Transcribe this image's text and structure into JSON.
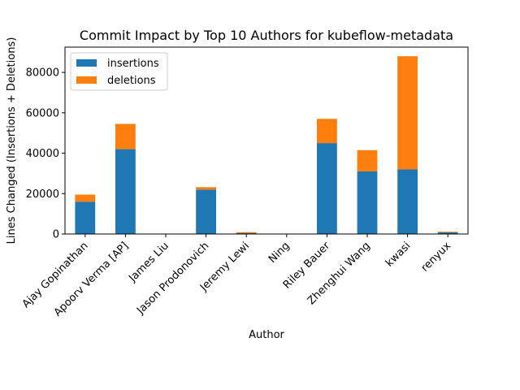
{
  "chart_data": {
    "type": "bar",
    "stacked": true,
    "title": "Commit Impact by Top 10 Authors for kubeflow-metadata",
    "xlabel": "Author",
    "ylabel": "Lines Changed (Insertions + Deletions)",
    "categories": [
      "Ajay Gopinathan",
      "Apoorv Verma [AP]",
      "James Liu",
      "Jason Prodonovich",
      "Jeremy Lewi",
      "Ning",
      "Riley Bauer",
      "Zhenghui Wang",
      "kwasi",
      "renyux"
    ],
    "series": [
      {
        "name": "insertions",
        "color": "#1f77b4",
        "values": [
          16000,
          42000,
          100,
          22000,
          400,
          50,
          45000,
          31000,
          32000,
          800
        ]
      },
      {
        "name": "deletions",
        "color": "#ff7f0e",
        "values": [
          3500,
          12500,
          30,
          1200,
          500,
          20,
          12000,
          10500,
          56000,
          300
        ]
      }
    ],
    "ylim": [
      0,
      92500
    ],
    "yticks": [
      0,
      20000,
      40000,
      60000,
      80000
    ],
    "ytick_labels": [
      "0",
      "20000",
      "40000",
      "60000",
      "80000"
    ],
    "legend": "upper-left",
    "grid": false
  }
}
